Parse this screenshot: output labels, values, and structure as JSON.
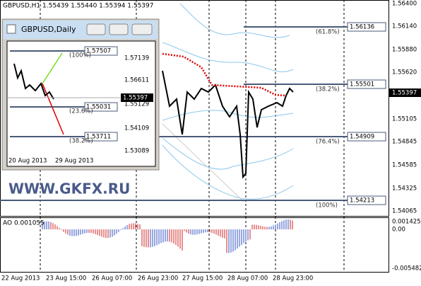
{
  "main_window": {
    "header": "GBPUSD,H1  1.55439 1.55440 1.55394 1.55397",
    "price_axis": [
      "1.56400",
      "1.56140",
      "1.55880",
      "1.55620",
      "1.55105",
      "1.54845",
      "1.54585",
      "1.54325",
      "1.54065"
    ],
    "current_price": "1.55397",
    "fib_levels": [
      {
        "label": "(61.8%)",
        "price": "1.56136"
      },
      {
        "label": "(38.2%)",
        "price": "1.55501"
      },
      {
        "label": "(76.4%)",
        "price": "1.54909"
      },
      {
        "label": "(100%)",
        "price": "1.54213"
      }
    ],
    "watermark": "WWW.GKFX.RU",
    "time_axis": [
      "22 Aug 2013",
      "23 Aug 15:00",
      "26 Aug 07:00",
      "26 Aug 23:00",
      "27 Aug 15:00",
      "28 Aug 07:00",
      "28 Aug 23:00"
    ]
  },
  "indicator": {
    "label": "AO 0.001055",
    "axis": [
      "0.001425",
      "0.00",
      "-0.005482"
    ]
  },
  "daily_window": {
    "title": "GBPUSD,Daily",
    "price_axis": [
      "1.57139",
      "1.56611",
      "1.55129",
      "1.54109",
      "1.53089"
    ],
    "current_price": "1.55397",
    "fib_levels": [
      {
        "label": "(100%)",
        "price": "1.57507"
      },
      {
        "label": "(23.6%)",
        "price": "1.55031"
      },
      {
        "label": "(38.2%)",
        "price": "1.53711"
      }
    ],
    "time_axis": [
      "20 Aug 2013",
      "29 Aug 2013"
    ]
  }
}
